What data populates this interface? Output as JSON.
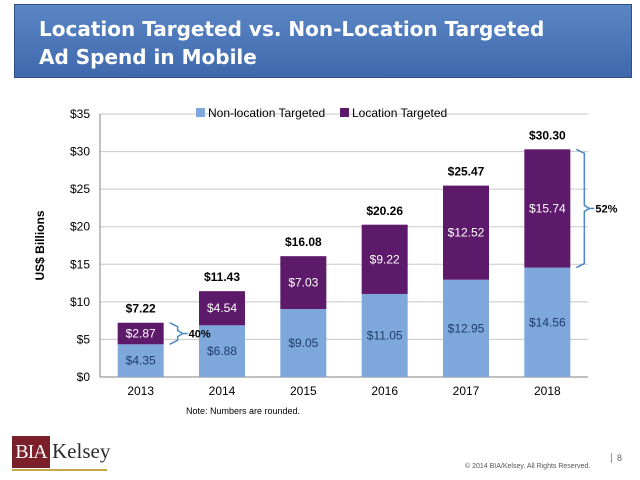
{
  "title": {
    "line1": "Location Targeted vs. Non-Location Targeted",
    "line2": "Ad Spend in Mobile"
  },
  "chart_data": {
    "type": "bar",
    "stacked": true,
    "categories": [
      "2013",
      "2014",
      "2015",
      "2016",
      "2017",
      "2018"
    ],
    "series": [
      {
        "name": "Non-location Targeted",
        "color": "#7ea7dc",
        "values": [
          4.35,
          6.88,
          9.05,
          11.05,
          12.95,
          14.56
        ],
        "labels": [
          "$4.35",
          "$6.88",
          "$9.05",
          "$11.05",
          "$12.95",
          "$14.56"
        ]
      },
      {
        "name": "Location Targeted",
        "color": "#5e1a6a",
        "values": [
          2.87,
          4.54,
          7.03,
          9.22,
          12.52,
          15.74
        ],
        "labels": [
          "$2.87",
          "$4.54",
          "$7.03",
          "$9.22",
          "$12.52",
          "$15.74"
        ]
      }
    ],
    "totals": [
      7.22,
      11.43,
      16.08,
      20.26,
      25.47,
      30.3
    ],
    "total_labels": [
      "$7.22",
      "$11.43",
      "$16.08",
      "$20.26",
      "$25.47",
      "$30.30"
    ],
    "ylabel": "US$ Billions",
    "ylim": [
      0,
      35
    ],
    "yticks": [
      0,
      5,
      10,
      15,
      20,
      25,
      30,
      35
    ],
    "ytick_labels": [
      "$0",
      "$5",
      "$10",
      "$15",
      "$20",
      "$25",
      "$30",
      "$35"
    ],
    "grid": true,
    "legend_position": "top",
    "annotations": [
      {
        "category": "2013",
        "text": "40%"
      },
      {
        "category": "2018",
        "text": "52%"
      }
    ],
    "bracket_color": "#4a86c8"
  },
  "note": "Note: Numbers are rounded.",
  "logo": {
    "box_text": "BIA",
    "word_text": "Kelsey"
  },
  "copyright": "© 2014 BIA/Kelsey. All Rights Reserved.",
  "page_number": "8"
}
